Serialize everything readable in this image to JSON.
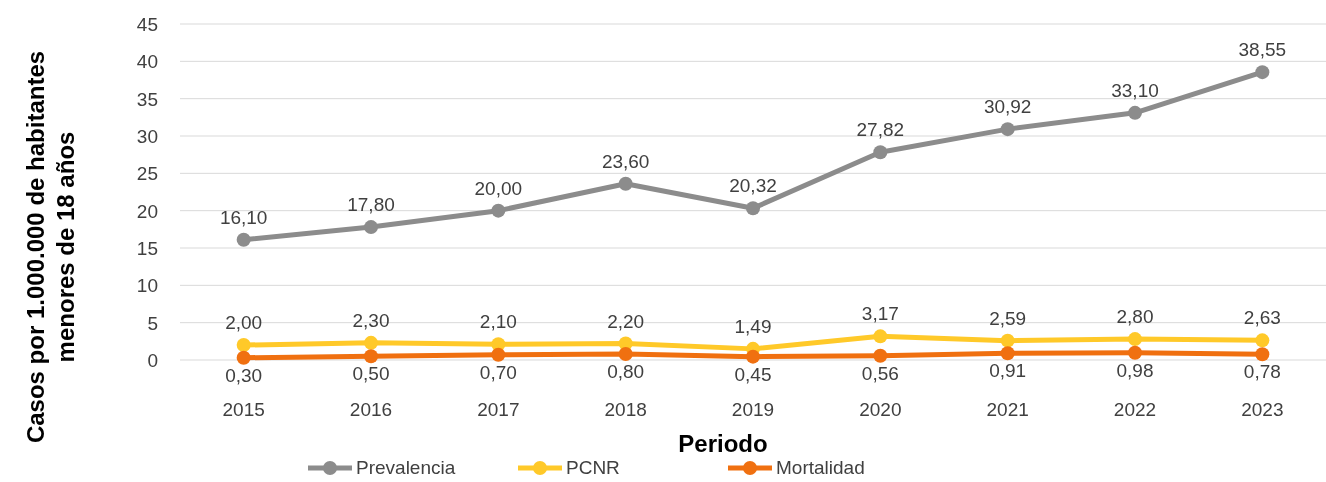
{
  "chart_data": {
    "type": "line",
    "xlabel": "Periodo",
    "ylabel": "Casos por 1.000.000 de habitantes menores de 18 años",
    "categories": [
      "2015",
      "2016",
      "2017",
      "2018",
      "2019",
      "2020",
      "2021",
      "2022",
      "2023"
    ],
    "series": [
      {
        "name": "Prevalencia",
        "color": "#8c8c8c",
        "values": [
          16.1,
          17.8,
          20.0,
          23.6,
          20.32,
          27.82,
          30.92,
          33.1,
          38.55
        ],
        "value_labels": [
          "16,10",
          "17,80",
          "20,00",
          "23,60",
          "20,32",
          "27,82",
          "30,92",
          "33,10",
          "38,55"
        ]
      },
      {
        "name": "PCNR",
        "color": "#ffc929",
        "values": [
          2.0,
          2.3,
          2.1,
          2.2,
          1.49,
          3.17,
          2.59,
          2.8,
          2.63
        ],
        "value_labels": [
          "2,00",
          "2,30",
          "2,10",
          "2,20",
          "1,49",
          "3,17",
          "2,59",
          "2,80",
          "2,63"
        ]
      },
      {
        "name": "Mortalidad",
        "color": "#f07010",
        "values": [
          0.3,
          0.5,
          0.7,
          0.8,
          0.45,
          0.56,
          0.91,
          0.98,
          0.78
        ],
        "value_labels": [
          "0,30",
          "0,50",
          "0,70",
          "0,80",
          "0,45",
          "0,56",
          "0,91",
          "0,98",
          "0,78"
        ]
      }
    ],
    "ylim": [
      0,
      45
    ],
    "yticks": [
      0,
      5,
      10,
      15,
      20,
      25,
      30,
      35,
      40,
      45
    ],
    "grid": "y",
    "legend": "bottom",
    "marker": "circle",
    "line_style": "solid"
  }
}
